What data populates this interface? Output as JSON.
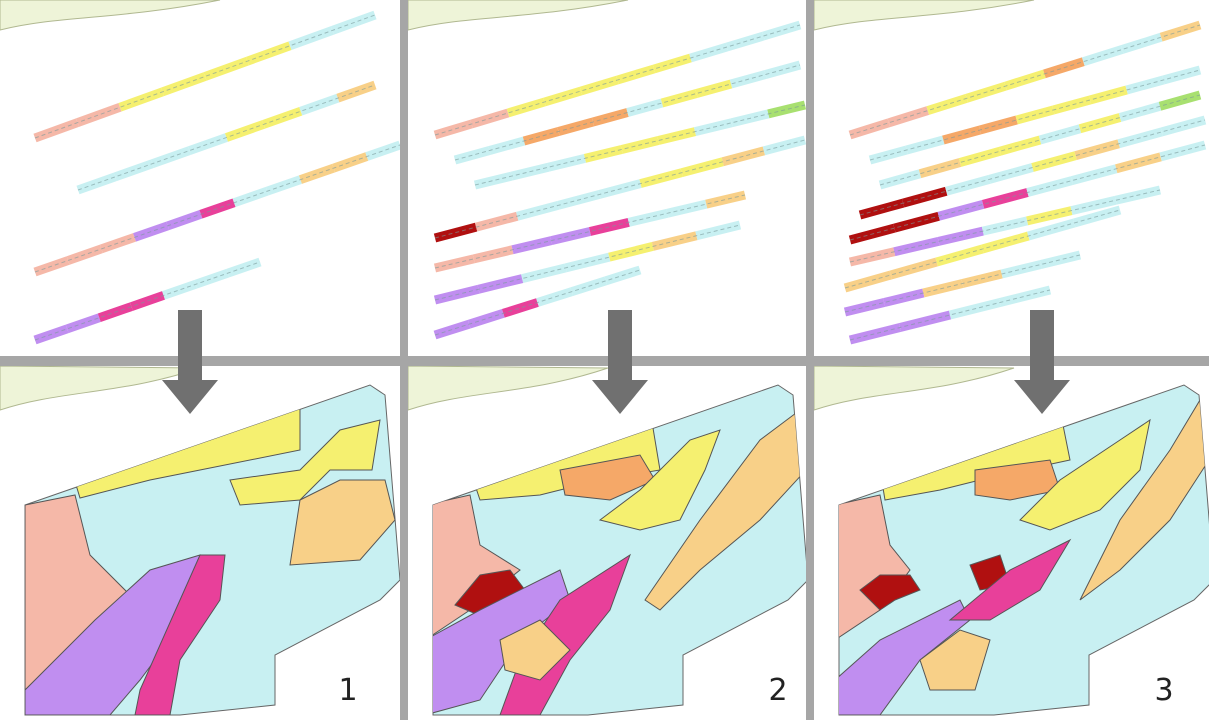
{
  "panels": [
    {
      "label": "1"
    },
    {
      "label": "2"
    },
    {
      "label": "3"
    }
  ]
}
